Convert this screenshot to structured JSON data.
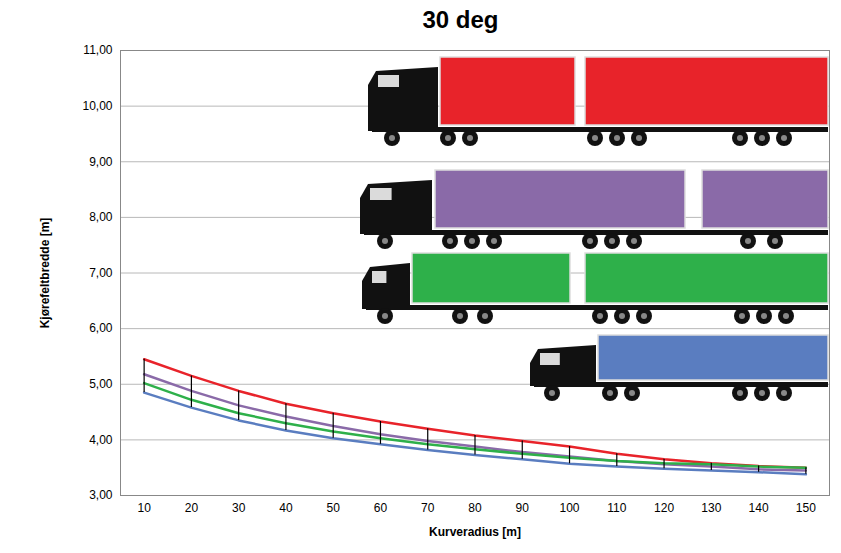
{
  "chart_data": {
    "type": "line",
    "title": "30 deg",
    "x_label": "Kurveradius [m]",
    "y_label": "Kjørefeltbredde [m]",
    "x": [
      10,
      20,
      30,
      40,
      50,
      60,
      70,
      80,
      90,
      100,
      110,
      120,
      130,
      140,
      150
    ],
    "series": [
      {
        "color": "#e8232a",
        "values": [
          5.45,
          5.15,
          4.88,
          4.65,
          4.48,
          4.33,
          4.2,
          4.08,
          3.98,
          3.88,
          3.75,
          3.65,
          3.58,
          3.53,
          3.5
        ]
      },
      {
        "color": "#8a6aa8",
        "values": [
          5.18,
          4.88,
          4.62,
          4.42,
          4.25,
          4.1,
          3.98,
          3.88,
          3.78,
          3.7,
          3.62,
          3.56,
          3.52,
          3.47,
          3.45
        ]
      },
      {
        "color": "#2eb04a",
        "values": [
          5.02,
          4.72,
          4.48,
          4.3,
          4.15,
          4.03,
          3.92,
          3.83,
          3.75,
          3.68,
          3.62,
          3.58,
          3.56,
          3.52,
          3.5
        ]
      },
      {
        "color": "#5a7dc0",
        "values": [
          4.85,
          4.58,
          4.35,
          4.17,
          4.03,
          3.92,
          3.82,
          3.73,
          3.65,
          3.57,
          3.52,
          3.48,
          3.45,
          3.42,
          3.38
        ]
      }
    ],
    "xlim": [
      5,
      155
    ],
    "xticks": [
      10,
      20,
      30,
      40,
      50,
      60,
      70,
      80,
      90,
      100,
      110,
      120,
      130,
      140,
      150
    ],
    "ylim": [
      3,
      11
    ],
    "yticks": [
      {
        "value": 3,
        "label": "3,00"
      },
      {
        "value": 4,
        "label": "4,00"
      },
      {
        "value": 5,
        "label": "5,00"
      },
      {
        "value": 6,
        "label": "6,00"
      },
      {
        "value": 7,
        "label": "7,00"
      },
      {
        "value": 8,
        "label": "8,00"
      },
      {
        "value": 9,
        "label": "9,00"
      },
      {
        "value": 10,
        "label": "10,00"
      },
      {
        "value": 11,
        "label": "11,00"
      }
    ],
    "grid": true
  }
}
